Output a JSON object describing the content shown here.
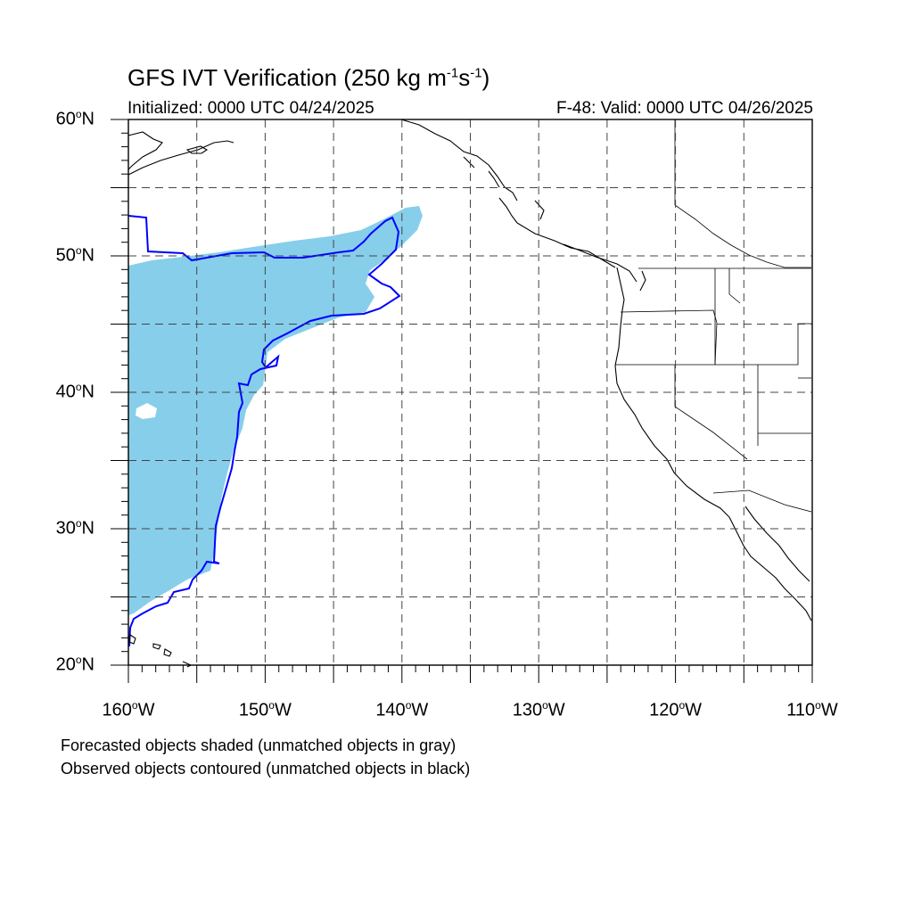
{
  "title": {
    "text": "GFS IVT Verification (250 kg m",
    "exp1": "-1",
    "mid": "s",
    "exp2": "-1",
    "end": ")"
  },
  "subtitle_left": "Initialized: 0000 UTC 04/24/2025",
  "subtitle_right": "F-48: Valid: 0000 UTC 04/26/2025",
  "captions": [
    "Forecasted objects shaded (unmatched objects in gray)",
    "Observed objects contoured (unmatched objects in black)"
  ],
  "map": {
    "lon_range": [
      -160,
      -110
    ],
    "lat_range": [
      20,
      60
    ],
    "grid_lon": [
      -155,
      -150,
      -145,
      -140,
      -135,
      -130,
      -125,
      -120,
      -115
    ],
    "grid_lat": [
      25,
      30,
      35,
      40,
      45,
      50,
      55
    ],
    "lat_labels": [
      {
        "lat": 60,
        "text": "60",
        "hemi": "N"
      },
      {
        "lat": 50,
        "text": "50",
        "hemi": "N"
      },
      {
        "lat": 40,
        "text": "40",
        "hemi": "N"
      },
      {
        "lat": 30,
        "text": "30",
        "hemi": "N"
      },
      {
        "lat": 20,
        "text": "20",
        "hemi": "N"
      }
    ],
    "lon_labels": [
      {
        "lon": -160,
        "text": "160",
        "hemi": "W"
      },
      {
        "lon": -150,
        "text": "150",
        "hemi": "W"
      },
      {
        "lon": -140,
        "text": "140",
        "hemi": "W"
      },
      {
        "lon": -130,
        "text": "130",
        "hemi": "W"
      },
      {
        "lon": -120,
        "text": "120",
        "hemi": "W"
      },
      {
        "lon": -110,
        "text": "110",
        "hemi": "W"
      }
    ],
    "colors": {
      "forecast_fill": "#87ceeb",
      "observed_contour": "#0000ff",
      "coastline": "#000000",
      "grid": "#444444"
    }
  }
}
